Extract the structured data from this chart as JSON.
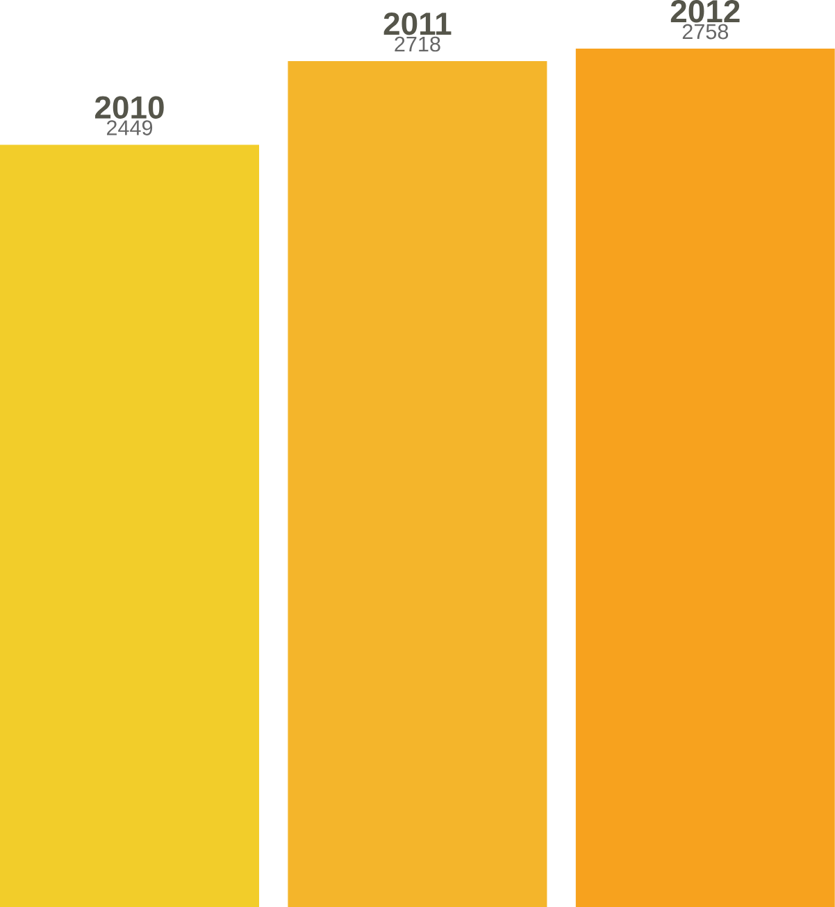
{
  "chart_data": {
    "type": "bar",
    "categories": [
      "2010",
      "2011",
      "2012"
    ],
    "values": [
      2449,
      2718,
      2758
    ],
    "colors": [
      "#f2cd2a",
      "#f4b52b",
      "#f7a21e"
    ],
    "data_labels": true
  }
}
